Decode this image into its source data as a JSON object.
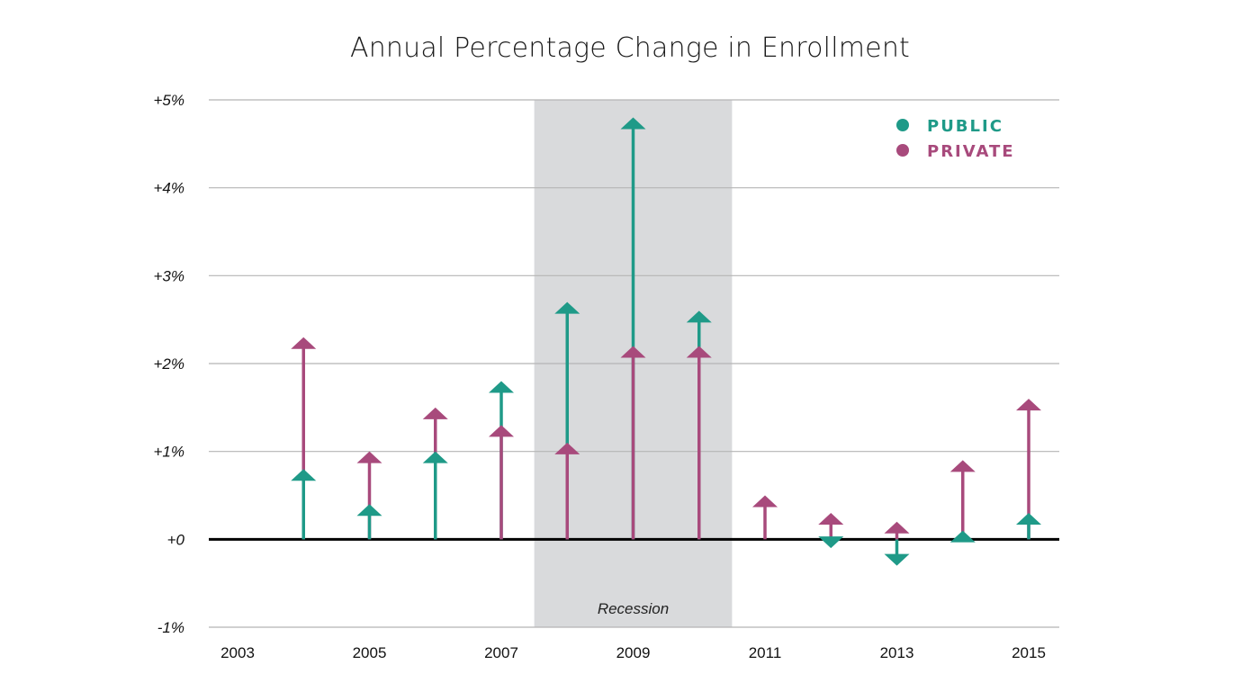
{
  "chart_data": {
    "type": "line",
    "title": "Annual Percentage Change in Enrollment",
    "xlabel": "",
    "ylabel": "",
    "x": [
      2004,
      2005,
      2006,
      2007,
      2008,
      2009,
      2010,
      2011,
      2012,
      2013,
      2014,
      2015
    ],
    "x_ticks": [
      "2003",
      "2005",
      "2007",
      "2009",
      "2011",
      "2013",
      "2015"
    ],
    "x_tick_values": [
      2003,
      2005,
      2007,
      2009,
      2011,
      2013,
      2015
    ],
    "y_ticks": [
      "-1%",
      "+0",
      "+1%",
      "+2%",
      "+3%",
      "+4%",
      "+5%"
    ],
    "y_tick_values": [
      -1,
      0,
      1,
      2,
      3,
      4,
      5
    ],
    "ylim": [
      -1,
      5
    ],
    "xlim": [
      2003,
      2015
    ],
    "grid": true,
    "legend_position": "top-right",
    "series": [
      {
        "name": "PUBLIC",
        "color": "#1f9a88",
        "values": [
          0.8,
          0.4,
          1.0,
          1.8,
          2.7,
          4.8,
          2.6,
          null,
          -0.1,
          -0.3,
          0.1,
          0.3
        ]
      },
      {
        "name": "PRIVATE",
        "color": "#a84a7c",
        "values": [
          2.3,
          1.0,
          1.5,
          1.3,
          1.1,
          2.2,
          2.2,
          0.5,
          0.3,
          0.2,
          0.9,
          1.6
        ]
      }
    ],
    "shaded_region": {
      "label": "Recession",
      "from": 2007.5,
      "to": 2010.5,
      "color": "#d9dadc"
    }
  }
}
